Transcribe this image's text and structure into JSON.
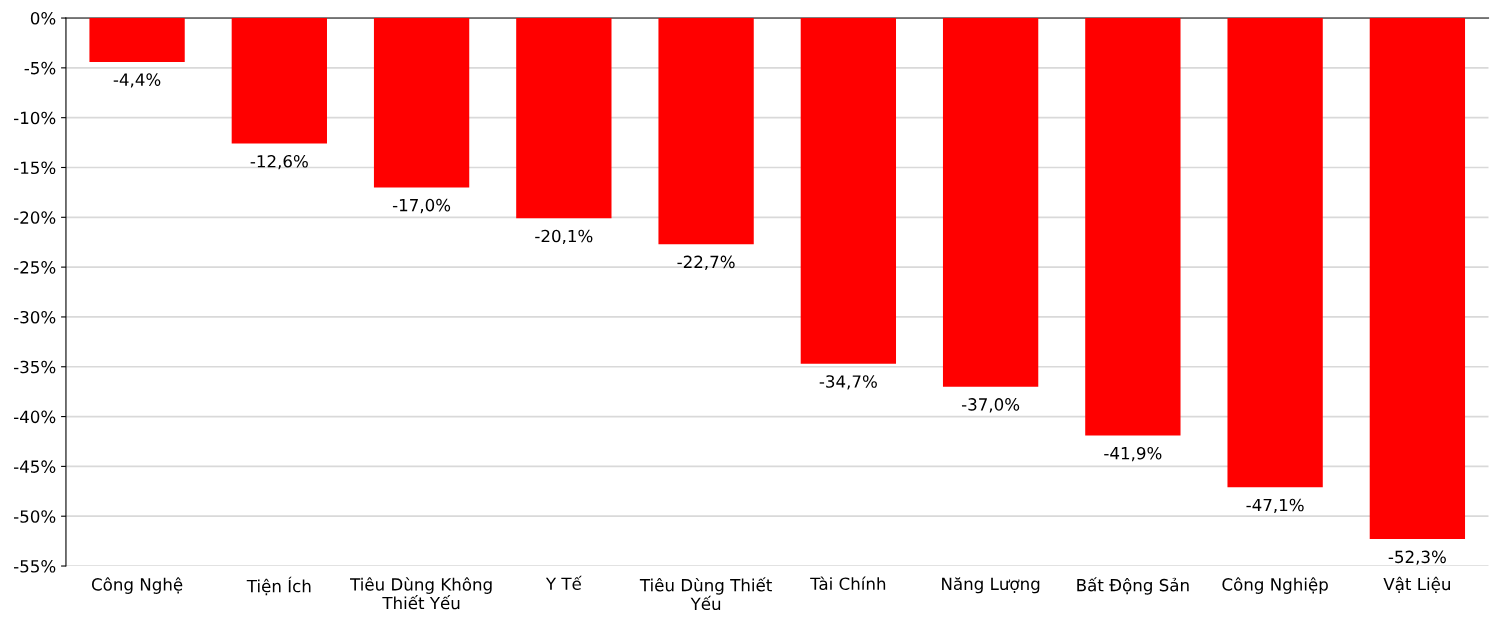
{
  "chart_data": {
    "type": "bar",
    "categories": [
      "Công Nghệ",
      "Tiện Ích",
      "Tiêu Dùng Không\nThiết Yếu",
      "Y Tế",
      "Tiêu Dùng Thiết\nYếu",
      "Tài Chính",
      "Năng Lượng",
      "Bất Động Sản",
      "Công Nghiệp",
      "Vật Liệu"
    ],
    "values": [
      -4.4,
      -12.6,
      -17.0,
      -20.1,
      -22.7,
      -34.7,
      -37.0,
      -41.9,
      -47.1,
      -52.3
    ],
    "value_labels": [
      "-4,4%",
      "-12,6%",
      "-17,0%",
      "-20,1%",
      "-22,7%",
      "-34,7%",
      "-37,0%",
      "-41,9%",
      "-47,1%",
      "-52,3%"
    ],
    "color": "#ff0000",
    "ylim": [
      -55,
      0
    ],
    "yticks": [
      {
        "value": 0,
        "label": "0%"
      },
      {
        "value": -5,
        "label": "-5%"
      },
      {
        "value": -10,
        "label": "-10%"
      },
      {
        "value": -15,
        "label": "-15%"
      },
      {
        "value": -20,
        "label": "-20%"
      },
      {
        "value": -25,
        "label": "-25%"
      },
      {
        "value": -30,
        "label": "-30%"
      },
      {
        "value": -35,
        "label": "-35%"
      },
      {
        "value": -40,
        "label": "-40%"
      },
      {
        "value": -45,
        "label": "-45%"
      },
      {
        "value": -50,
        "label": "-50%"
      },
      {
        "value": -55,
        "label": "-55%"
      }
    ],
    "grid": "y"
  }
}
